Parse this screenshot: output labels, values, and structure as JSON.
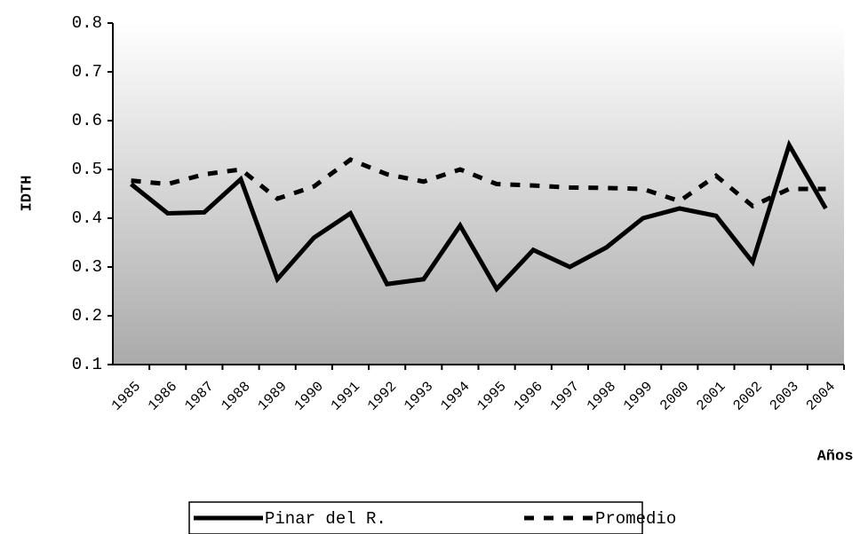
{
  "chart_data": {
    "type": "line",
    "x_label": "Años",
    "y_label": "IDTH",
    "categories": [
      "1985",
      "1986",
      "1987",
      "1988",
      "1989",
      "1990",
      "1991",
      "1992",
      "1993",
      "1994",
      "1995",
      "1996",
      "1997",
      "1998",
      "1999",
      "2000",
      "2001",
      "2002",
      "2003",
      "2004"
    ],
    "series": [
      {
        "name": "Pinar del R.",
        "color": "#000000",
        "dash": false,
        "values": [
          0.47,
          0.41,
          0.412,
          0.48,
          0.275,
          0.36,
          0.41,
          0.265,
          0.275,
          0.385,
          0.255,
          0.335,
          0.3,
          0.34,
          0.4,
          0.42,
          0.405,
          0.31,
          0.55,
          0.42
        ]
      },
      {
        "name": "Promedio",
        "color": "#000000",
        "dash": true,
        "values": [
          0.477,
          0.47,
          0.49,
          0.5,
          0.44,
          0.465,
          0.52,
          0.49,
          0.475,
          0.5,
          0.47,
          0.467,
          0.463,
          0.462,
          0.46,
          0.435,
          0.487,
          0.425,
          0.46,
          0.46
        ]
      }
    ],
    "ylim": [
      0.1,
      0.8
    ],
    "yticks": [
      0.1,
      0.2,
      0.3,
      0.4,
      0.5,
      0.6,
      0.7,
      0.8
    ]
  }
}
